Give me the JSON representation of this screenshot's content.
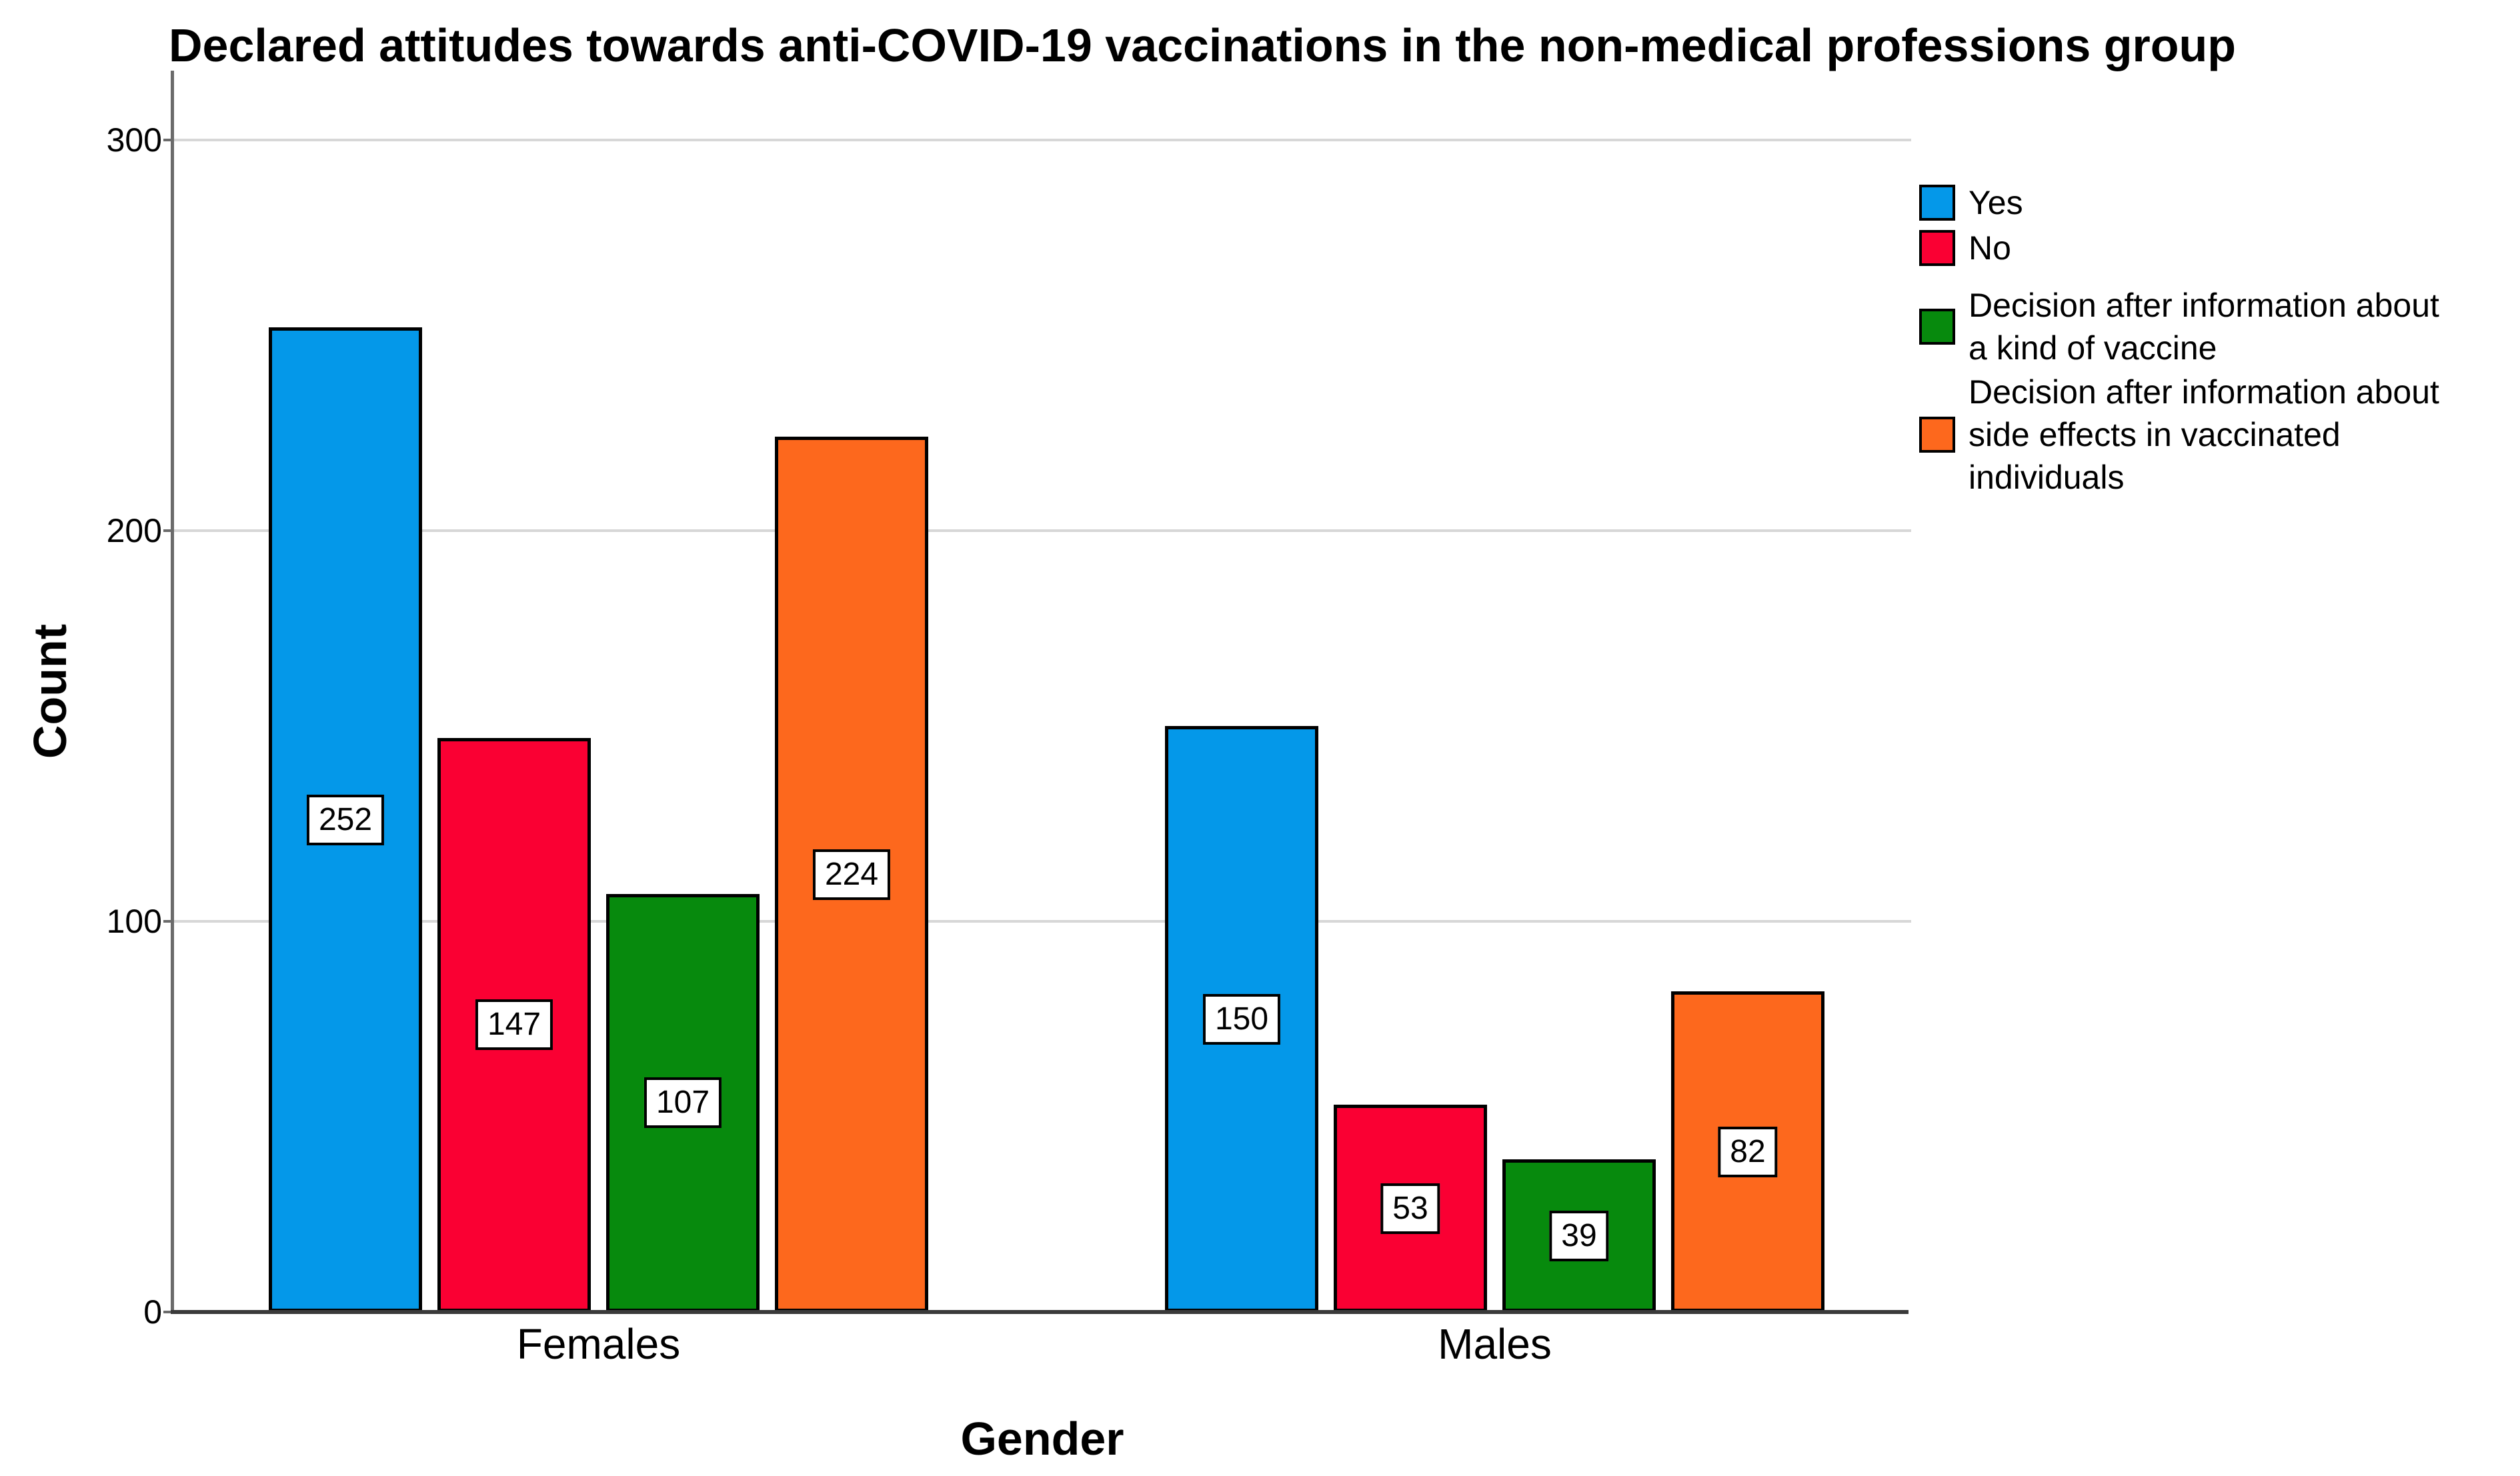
{
  "chart_data": {
    "type": "bar",
    "title": "Declared attitudes towards anti-COVID-19 vaccinations in the non-medical professions group",
    "xlabel": "Gender",
    "ylabel": "Count",
    "categories": [
      "Females",
      "Males"
    ],
    "series": [
      {
        "name": "Yes",
        "legend_lines": [
          "Yes"
        ],
        "color": "#0498E9",
        "values": [
          252,
          150
        ]
      },
      {
        "name": "No",
        "legend_lines": [
          "No"
        ],
        "color": "#FA0033",
        "values": [
          147,
          53
        ]
      },
      {
        "name": "Decision after information about a kind of vaccine",
        "legend_lines": [
          "Decision after information about",
          "a kind of vaccine"
        ],
        "color": "#078A0D",
        "values": [
          107,
          39
        ]
      },
      {
        "name": "Decision after information about side effects in vaccinated individuals",
        "legend_lines": [
          "Decision after information about",
          "side effects in vaccinated",
          "individuals"
        ],
        "color": "#FD681D",
        "values": [
          224,
          82
        ]
      }
    ],
    "yticks": [
      0,
      100,
      200,
      300
    ],
    "ylim": [
      0,
      318
    ],
    "grid": "horizontal",
    "legend_position": "right",
    "show_bar_value_labels": true
  }
}
